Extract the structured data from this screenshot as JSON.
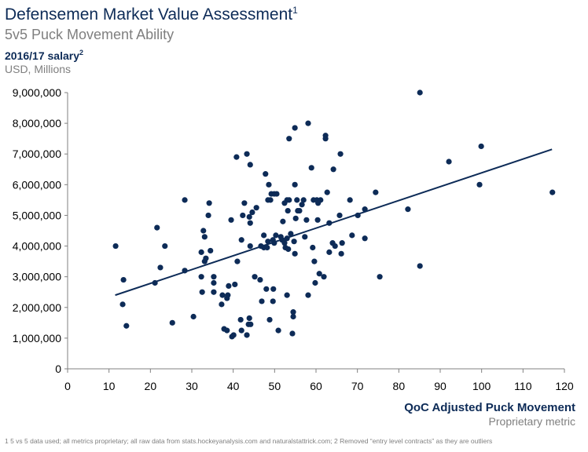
{
  "title": "Defensemen Market Value Assessment",
  "title_note": "1",
  "subtitle": "5v5 Puck Movement Ability",
  "footnote": "1 5 vs 5 data used; all metrics proprietary; all raw data from stats.hockeyanalysis.com and naturalstattrick.com; 2 Removed “entry level contracts” as they are outliers",
  "chart_data": {
    "type": "scatter",
    "y_label": "2016/17 salary",
    "y_label_note": "2",
    "y_unit": "USD, Millions",
    "x_label": "QoC Adjusted Puck Movement",
    "x_unit": "Proprietary metric",
    "xlim": [
      0,
      120
    ],
    "xticks": [
      0,
      10,
      20,
      30,
      40,
      50,
      60,
      70,
      80,
      90,
      100,
      110,
      120
    ],
    "ylim": [
      0,
      9000000
    ],
    "yticks": [
      0,
      {
        "value": 1000000,
        "label": "1,000,000"
      },
      {
        "value": 2000000,
        "label": "2,000,000"
      },
      {
        "value": 3000000,
        "label": "3,000,000"
      },
      {
        "value": 4000000,
        "label": "4,000,000"
      },
      {
        "value": 5000000,
        "label": "5,000,000"
      },
      {
        "value": 6000000,
        "label": "6,000,000"
      },
      {
        "value": 7000000,
        "label": "7,000,000"
      },
      {
        "value": 8000000,
        "label": "8,000,000"
      },
      {
        "value": 9000000,
        "label": "9,000,000"
      }
    ],
    "series": [
      {
        "color": "#0d2b57",
        "x": [
          11.6,
          13.5,
          13.3,
          14.2,
          21.1,
          21.6,
          22.4,
          23.5,
          25.3,
          28.3,
          28.3,
          30.4,
          32.3,
          32.3,
          32.8,
          33.1,
          33.1,
          33.4,
          34.0,
          34.2,
          34.5,
          32.5,
          35.3,
          35.3,
          35.3,
          37.4,
          37.2,
          37.8,
          38.5,
          38.5,
          38.7,
          38.9,
          39.5,
          39.7,
          40.1,
          40.4,
          40.8,
          41.0,
          41.8,
          42.0,
          42.0,
          42.3,
          42.7,
          43.3,
          43.3,
          43.7,
          43.9,
          43.9,
          44.1,
          44.1,
          44.1,
          44.2,
          44.6,
          45.2,
          45.6,
          46.5,
          46.7,
          46.9,
          47.4,
          47.4,
          47.8,
          48.0,
          48.2,
          48.4,
          48.4,
          48.6,
          48.8,
          49.0,
          49.2,
          49.6,
          49.6,
          49.7,
          49.9,
          49.9,
          50.3,
          50.5,
          50.9,
          51.5,
          51.8,
          52.0,
          52.4,
          52.4,
          52.6,
          53.0,
          53.0,
          53.0,
          53.2,
          53.3,
          53.5,
          53.5,
          53.9,
          54.3,
          54.5,
          54.5,
          54.7,
          54.9,
          54.9,
          54.9,
          55.1,
          55.4,
          55.6,
          56.0,
          56.6,
          57.0,
          57.3,
          57.7,
          58.1,
          58.1,
          58.9,
          59.2,
          59.4,
          59.6,
          59.8,
          60.2,
          60.4,
          60.5,
          60.8,
          61.1,
          61.9,
          62.3,
          62.3,
          62.7,
          63.2,
          63.2,
          64.0,
          64.2,
          64.6,
          65.7,
          65.9,
          66.1,
          66.3,
          68.2,
          68.7,
          70.1,
          71.8,
          71.8,
          74.4,
          75.4,
          82.2,
          85.1,
          85.1,
          92.1,
          99.9,
          99.5,
          117.1
        ],
        "values": [
          4000000,
          2900000,
          2100000,
          1400000,
          2800000,
          4600000,
          3300000,
          4000000,
          1500000,
          5500000,
          3200000,
          1700000,
          3000000,
          3800000,
          4500000,
          4300000,
          3500000,
          3600000,
          5000000,
          5400000,
          3850000,
          2500000,
          3000000,
          2800000,
          2500000,
          2400000,
          2100000,
          1300000,
          1250000,
          2300000,
          2400000,
          2700000,
          4850000,
          1050000,
          1100000,
          2750000,
          6900000,
          3500000,
          1600000,
          1250000,
          4200000,
          5000000,
          5400000,
          7000000,
          1100000,
          1450000,
          1650000,
          4950000,
          4750000,
          6650000,
          4000000,
          1450000,
          5100000,
          3000000,
          5250000,
          2900000,
          4000000,
          2200000,
          4350000,
          3950000,
          6350000,
          2600000,
          3950000,
          4150000,
          5500000,
          6000000,
          1600000,
          5500000,
          5700000,
          4200000,
          2200000,
          2600000,
          5700000,
          4100000,
          4350000,
          5700000,
          1250000,
          4300000,
          4200000,
          4800000,
          5400000,
          4100000,
          3950000,
          2400000,
          4250000,
          5500000,
          5150000,
          3900000,
          7500000,
          5500000,
          4400000,
          1150000,
          1700000,
          1850000,
          4150000,
          7850000,
          6000000,
          3750000,
          4900000,
          5500000,
          5150000,
          5150000,
          5350000,
          5500000,
          4300000,
          4850000,
          2400000,
          8000000,
          6550000,
          3950000,
          5500000,
          3500000,
          2800000,
          5500000,
          4850000,
          5400000,
          3100000,
          5500000,
          3000000,
          7600000,
          7500000,
          5750000,
          4750000,
          3800000,
          4100000,
          6500000,
          4000000,
          5000000,
          7000000,
          3750000,
          4100000,
          5500000,
          4350000,
          5000000,
          5200000,
          4250000,
          5750000,
          3000000,
          5200000,
          3350000,
          9000000,
          6750000,
          7250000,
          6000000,
          5750000
        ]
      }
    ],
    "trend_line": {
      "color": "#0d2b57",
      "x": [
        11.5,
        117
      ],
      "values": [
        2400000,
        7150000
      ]
    }
  }
}
